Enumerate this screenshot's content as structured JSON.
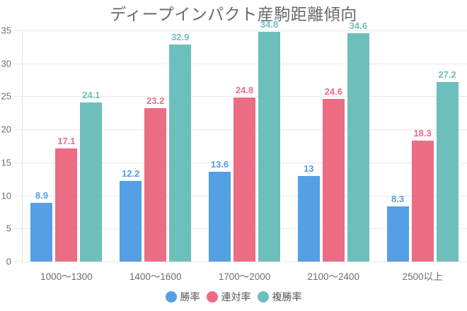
{
  "chart_data": {
    "type": "bar",
    "title": "ディープインパクト産駒距離傾向",
    "categories": [
      "1000〜1300",
      "1400〜1600",
      "1700〜2000",
      "2100〜2400",
      "2500以上"
    ],
    "series": [
      {
        "name": "勝率",
        "color": "#559fe4",
        "values": [
          8.9,
          12.2,
          13.6,
          13,
          8.3
        ]
      },
      {
        "name": "連対率",
        "color": "#ec6c84",
        "values": [
          17.1,
          23.2,
          24.8,
          24.6,
          18.3
        ]
      },
      {
        "name": "複勝率",
        "color": "#6dbfbc",
        "values": [
          24.1,
          32.9,
          34.8,
          34.6,
          27.2
        ]
      }
    ],
    "xlabel": "",
    "ylabel": "",
    "ylim": [
      0,
      35
    ],
    "ytick_step": 5,
    "grid": true,
    "legend_position": "bottom",
    "value_labels": true,
    "colors": {
      "title": "#696969",
      "axis_ticks": "#6e6e6e",
      "gridline": "#e8e8e8",
      "legend_text": "#555555",
      "background": "#ffffff"
    }
  }
}
